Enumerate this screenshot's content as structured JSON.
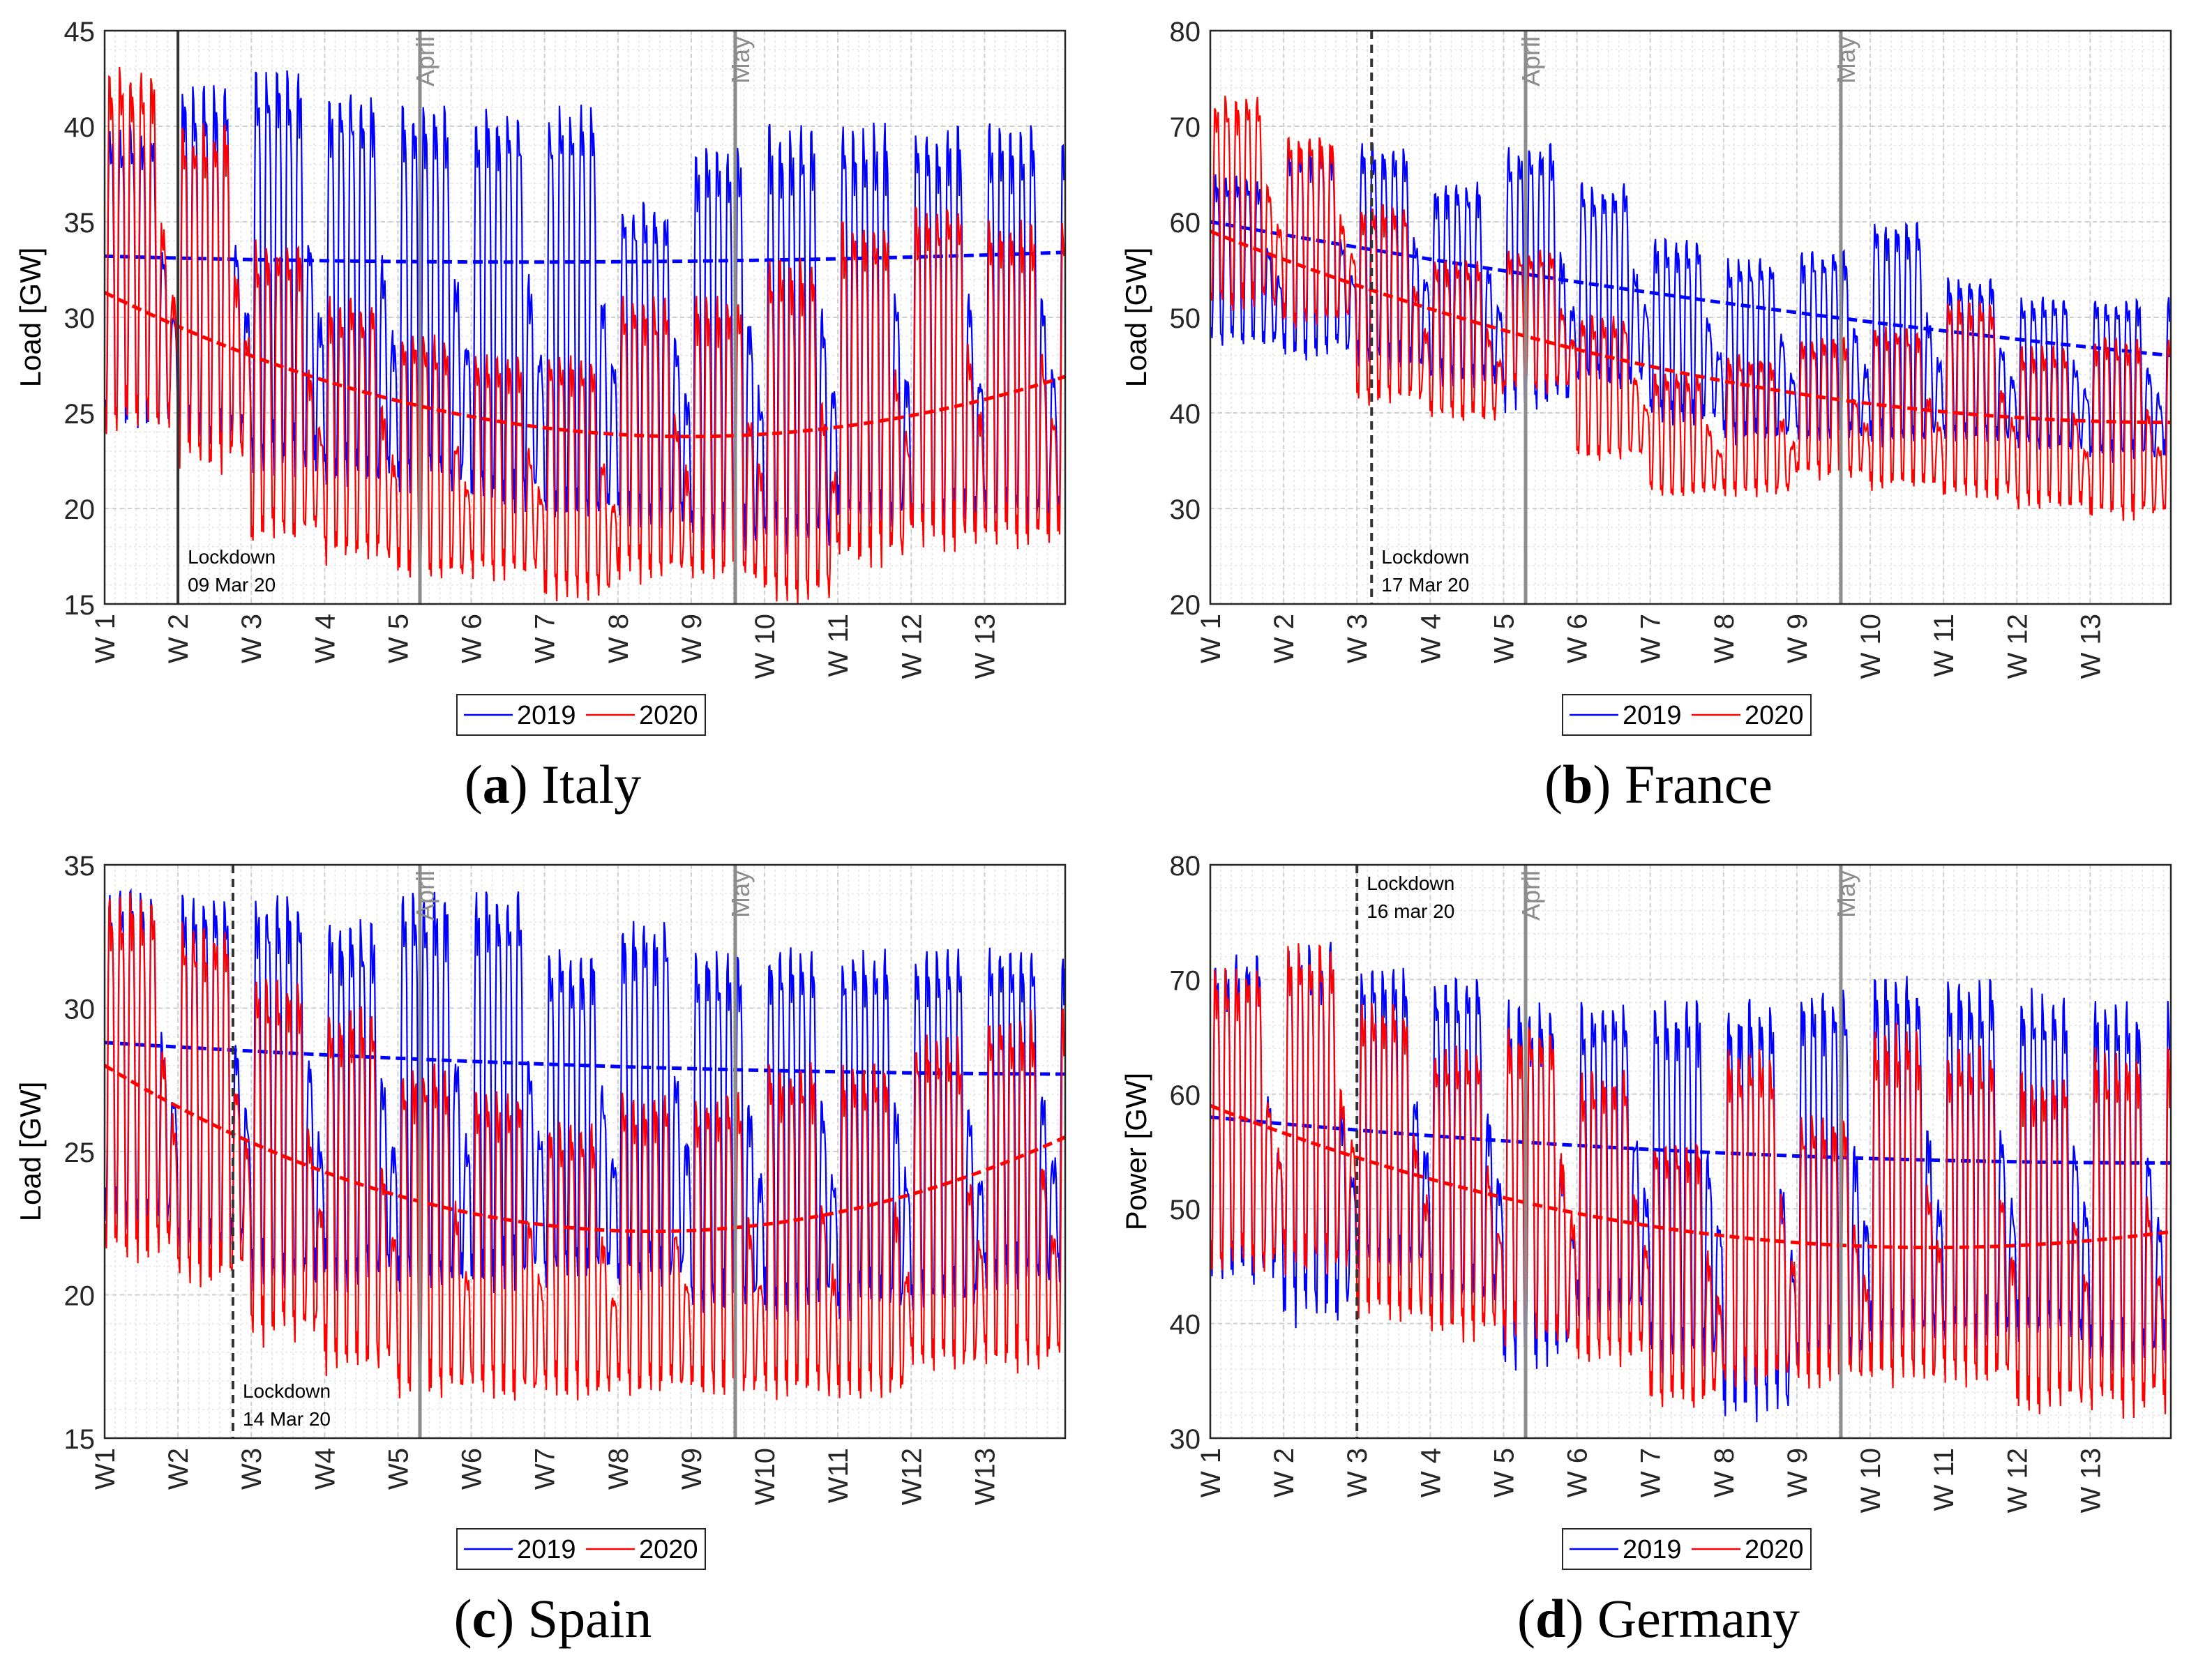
{
  "colors": {
    "y2019": "#0000ff",
    "y2020": "#ff0000",
    "grid": "#cfcfcf",
    "month": "#8c8c8c",
    "lockdown": "#333333"
  },
  "chart_data": [
    {
      "type": "line",
      "panel_letter": "a",
      "country": "Italy",
      "ylabel": "Load [GW]",
      "ylim": [
        15,
        45
      ],
      "yticks": [
        "15",
        "20",
        "25",
        "30",
        "35",
        "40",
        "45"
      ],
      "xtick_labels": [
        "W 1",
        "W 2",
        "W 3",
        "W 4",
        "W 5",
        "W 6",
        "W 7",
        "W 8",
        "W 9",
        "W 10",
        "W 11",
        "W 12",
        "W 13"
      ],
      "xlim_weeks": [
        1,
        14.1
      ],
      "grid": "on",
      "legend": [
        "2019",
        "2020"
      ],
      "legend_position": "bottom",
      "month_lines": [
        {
          "label": "April",
          "week": 5.3
        },
        {
          "label": "May",
          "week": 9.6
        }
      ],
      "lockdown": {
        "week": 2.0,
        "label1": "Lockdown",
        "label2": "09 Mar 20",
        "style": "solid"
      },
      "series": [
        {
          "name": "2019",
          "week_peaks": [
            40,
            42,
            43,
            42,
            41,
            41,
            41,
            36,
            39,
            40,
            40,
            40,
            40
          ],
          "week_troughs": [
            25,
            24,
            23,
            22,
            22,
            21,
            20,
            20,
            19,
            19,
            20,
            20,
            20
          ],
          "trend_start": 33.2,
          "trend_mid": 32.9,
          "trend_end": 33.4
        },
        {
          "name": "2020",
          "week_peaks": [
            43,
            40,
            34,
            31,
            29,
            28,
            28,
            31,
            31,
            33,
            35,
            36,
            35
          ],
          "week_troughs": [
            25,
            23,
            19,
            18,
            17,
            17,
            16,
            17,
            17,
            16,
            18,
            19,
            19
          ],
          "trend_start": 31.3,
          "trend_mid": 24.0,
          "trend_end": 26.9
        }
      ]
    },
    {
      "type": "line",
      "panel_letter": "b",
      "country": "France",
      "ylabel": "Load [GW]",
      "ylim": [
        20,
        80
      ],
      "yticks": [
        "20",
        "30",
        "40",
        "50",
        "60",
        "70",
        "80"
      ],
      "xtick_labels": [
        "W 1",
        "W 2",
        "W 3",
        "W 4",
        "W 5",
        "W 6",
        "W 7",
        "W 8",
        "W 9",
        "W 10",
        "W 11",
        "W 12",
        "W 13"
      ],
      "xlim_weeks": [
        1,
        14.1
      ],
      "grid": "on",
      "legend": [
        "2019",
        "2020"
      ],
      "legend_position": "bottom",
      "month_lines": [
        {
          "label": "April",
          "week": 5.3
        },
        {
          "label": "May",
          "week": 9.6
        }
      ],
      "lockdown": {
        "week": 3.2,
        "label1": "Lockdown",
        "label2": "17 Mar 20",
        "style": "dashed"
      },
      "series": [
        {
          "name": "2019",
          "week_peaks": [
            65,
            68,
            68,
            64,
            68,
            64,
            58,
            56,
            57,
            60,
            54,
            52,
            52
          ],
          "week_troughs": [
            48,
            47,
            46,
            44,
            42,
            44,
            40,
            38,
            38,
            38,
            38,
            37,
            36
          ],
          "trend_start": 60,
          "trend_mid": 52,
          "trend_end": 46
        },
        {
          "name": "2020",
          "week_peaks": [
            73,
            69,
            62,
            56,
            57,
            50,
            44,
            46,
            48,
            49,
            52,
            47,
            48
          ],
          "week_troughs": [
            52,
            50,
            42,
            40,
            43,
            36,
            32,
            32,
            34,
            33,
            32,
            31,
            30
          ],
          "trend_start": 59,
          "trend_mid": 44,
          "trend_end": 39
        }
      ]
    },
    {
      "type": "line",
      "panel_letter": "c",
      "country": "Spain",
      "ylabel": "Load [GW]",
      "ylim": [
        15,
        35
      ],
      "yticks": [
        "15",
        "20",
        "25",
        "30",
        "35"
      ],
      "xtick_labels": [
        "W1",
        "W2",
        "W3",
        "W4",
        "W5",
        "W6",
        "W7",
        "W8",
        "W9",
        "W10",
        "W11",
        "W12",
        "W13"
      ],
      "xlim_weeks": [
        1,
        14.1
      ],
      "grid": "on",
      "legend": [
        "2019",
        "2020"
      ],
      "legend_position": "bottom",
      "month_lines": [
        {
          "label": "April",
          "week": 5.3
        },
        {
          "label": "May",
          "week": 9.6
        }
      ],
      "lockdown": {
        "week": 2.75,
        "label1": "Lockdown",
        "label2": "14 Mar 20",
        "style": "dashed"
      },
      "series": [
        {
          "name": "2019",
          "week_peaks": [
            34,
            34,
            34,
            33,
            34,
            34,
            32,
            33,
            32,
            32,
            32,
            32,
            32
          ],
          "week_troughs": [
            23,
            22,
            21,
            21,
            21,
            21,
            21,
            21,
            20,
            20,
            20,
            20,
            21
          ],
          "trend_start": 28.8,
          "trend_mid": 28.0,
          "trend_end": 27.7
        },
        {
          "name": "2020",
          "week_peaks": [
            34,
            33,
            31,
            30,
            28,
            27,
            26,
            27,
            27,
            28,
            28,
            29,
            30
          ],
          "week_troughs": [
            22,
            21,
            19,
            18,
            17,
            17,
            17,
            17,
            17,
            17,
            17,
            18,
            18
          ],
          "trend_start": 28.0,
          "trend_mid": 22.3,
          "trend_end": 25.5
        }
      ]
    },
    {
      "type": "line",
      "panel_letter": "d",
      "country": "Germany",
      "ylabel": "Power [GW]",
      "ylim": [
        30,
        80
      ],
      "yticks": [
        "30",
        "40",
        "50",
        "60",
        "70",
        "80"
      ],
      "xtick_labels": [
        "W 1",
        "W 2",
        "W 3",
        "W 4",
        "W 5",
        "W 6",
        "W 7",
        "W 8",
        "W 9",
        "W 10",
        "W 11",
        "W 12",
        "W 13"
      ],
      "xlim_weeks": [
        1,
        14.1
      ],
      "grid": "on",
      "legend": [
        "2019",
        "2020"
      ],
      "legend_position": "bottom",
      "month_lines": [
        {
          "label": "April",
          "week": 5.3
        },
        {
          "label": "May",
          "week": 9.6
        }
      ],
      "lockdown": {
        "week": 3.0,
        "label1": "Lockdown",
        "label2": "16 mar 20",
        "style": "dashed"
      },
      "series": [
        {
          "name": "2019",
          "week_peaks": [
            72,
            73,
            71,
            70,
            68,
            68,
            68,
            68,
            69,
            70,
            70,
            69,
            68
          ],
          "week_troughs": [
            45,
            42,
            46,
            43,
            38,
            42,
            38,
            34,
            38,
            40,
            40,
            40,
            38
          ],
          "trend_start": 58,
          "trend_mid": 55,
          "trend_end": 54
        },
        {
          "name": "2020",
          "week_peaks": [
            71,
            73,
            68,
            64,
            66,
            62,
            56,
            64,
            58,
            66,
            64,
            62,
            64
          ],
          "week_troughs": [
            46,
            46,
            42,
            40,
            40,
            38,
            34,
            36,
            36,
            36,
            36,
            34,
            34
          ],
          "trend_start": 59,
          "trend_mid": 48,
          "trend_end": 48
        }
      ]
    }
  ]
}
